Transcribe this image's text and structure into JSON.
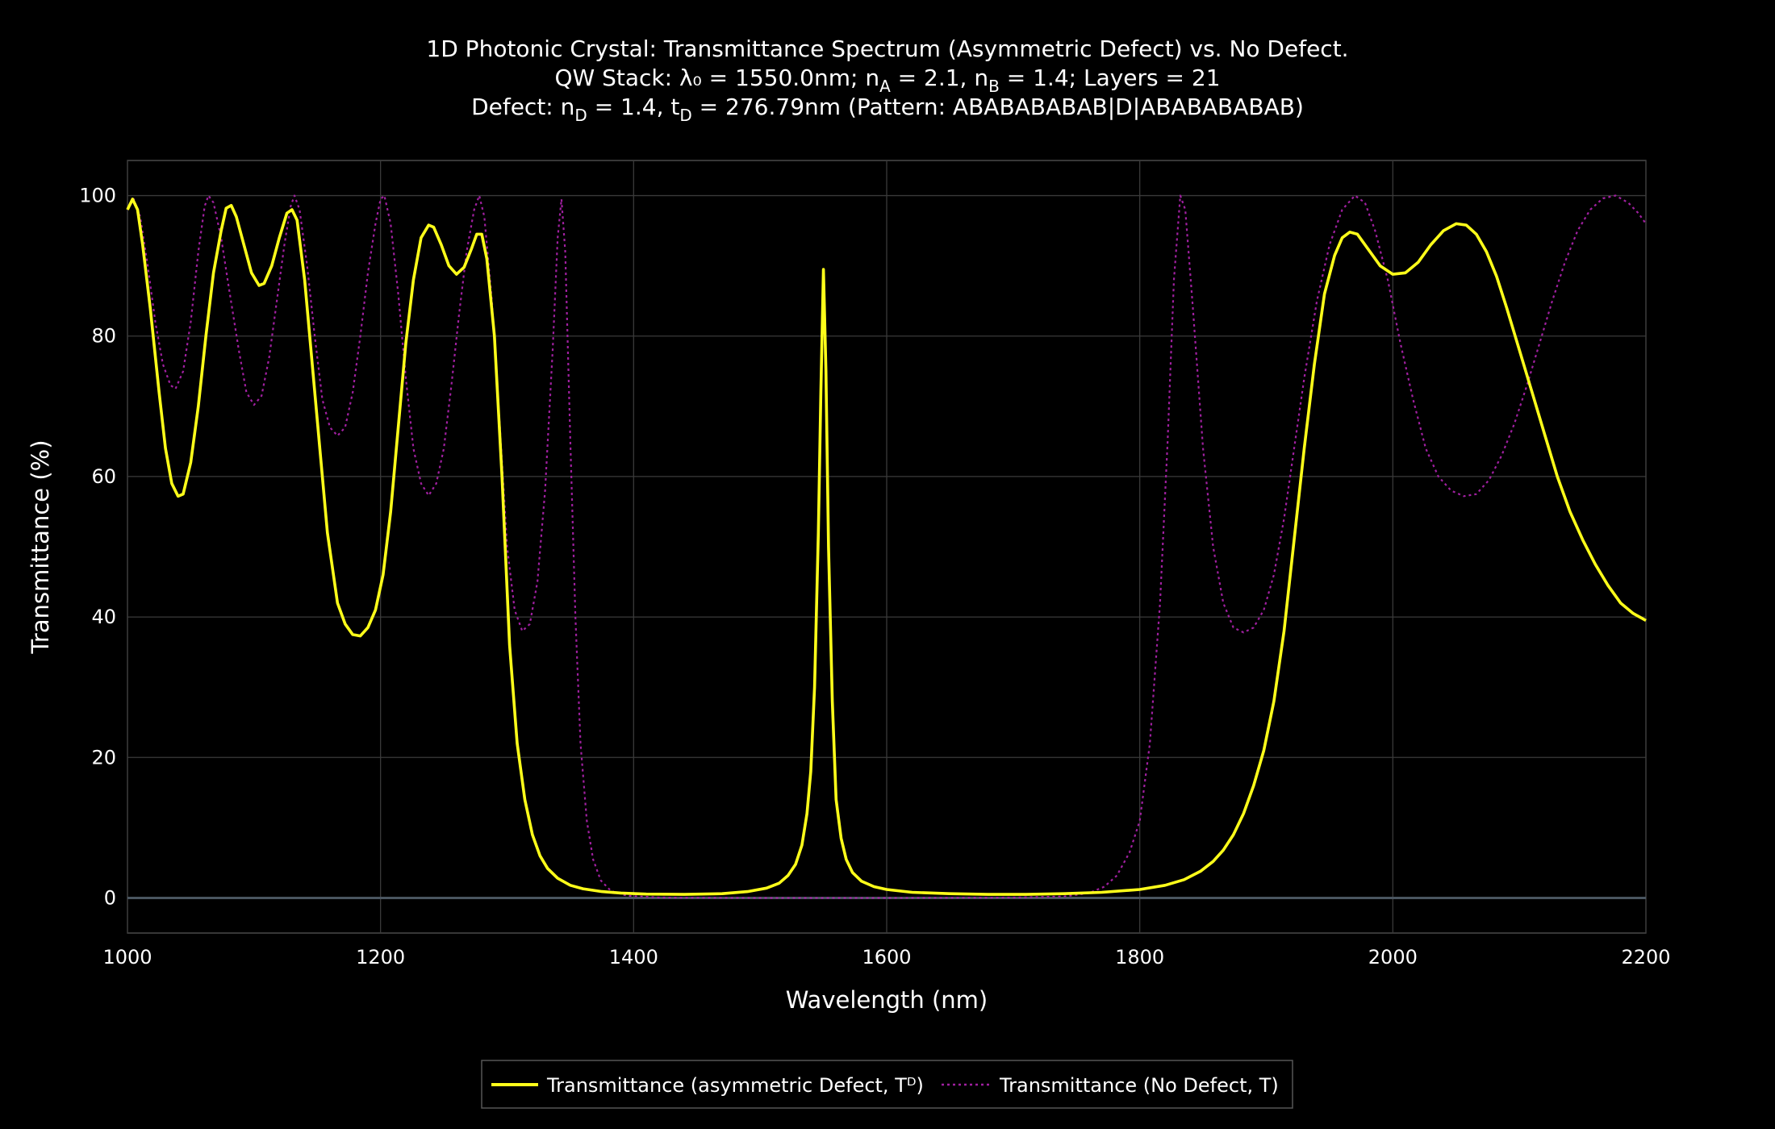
{
  "title": {
    "line1": "1D Photonic Crystal: Transmittance Spectrum (Asymmetric Defect) vs. No Defect.",
    "line2_a": "QW Stack: λ₀ = 1550.0nm; n",
    "line2_sub_a": "A",
    "line2_b": " = 2.1, n",
    "line2_sub_b": "B",
    "line2_c": " = 1.4; Layers = 21",
    "line3_a": "Defect: n",
    "line3_sub_a": "D",
    "line3_b": " = 1.4, t",
    "line3_sub_b": "D",
    "line3_c": " = 276.79nm (Pattern: ABABABABAB|D|ABABABABAB)"
  },
  "colors": {
    "background": "#000000",
    "defect_series": "#ffff1a",
    "no_defect_series": "#a020a0",
    "grid": "#3a3a3a",
    "zeroline": "#4a5560"
  },
  "chart_data": {
    "type": "line",
    "xlabel": "Wavelength (nm)",
    "ylabel": "Transmittance (%)",
    "xlim": [
      1000,
      2200
    ],
    "ylim": [
      -5,
      105
    ],
    "x_ticks": [
      1000,
      1200,
      1400,
      1600,
      1800,
      2000,
      2200
    ],
    "y_ticks": [
      0,
      20,
      40,
      60,
      80,
      100
    ],
    "grid": true,
    "legend_position": "bottom-center",
    "series": [
      {
        "name": "Transmittance (asymmetric Defect, Tᴰ)",
        "style": "solid",
        "color": "#ffff1a",
        "points": [
          [
            1000,
            98
          ],
          [
            1004,
            99.5
          ],
          [
            1008,
            98
          ],
          [
            1012,
            93
          ],
          [
            1018,
            84
          ],
          [
            1025,
            72
          ],
          [
            1030,
            64
          ],
          [
            1035,
            59
          ],
          [
            1040,
            57.2
          ],
          [
            1044,
            57.5
          ],
          [
            1050,
            62
          ],
          [
            1056,
            70
          ],
          [
            1062,
            80
          ],
          [
            1068,
            89
          ],
          [
            1074,
            95
          ],
          [
            1078,
            98.2
          ],
          [
            1082,
            98.6
          ],
          [
            1086,
            97
          ],
          [
            1092,
            93
          ],
          [
            1098,
            89
          ],
          [
            1104,
            87.2
          ],
          [
            1108,
            87.5
          ],
          [
            1114,
            90
          ],
          [
            1120,
            94
          ],
          [
            1126,
            97.5
          ],
          [
            1130,
            98
          ],
          [
            1134,
            96.5
          ],
          [
            1140,
            88
          ],
          [
            1146,
            76
          ],
          [
            1152,
            64
          ],
          [
            1158,
            52
          ],
          [
            1166,
            42
          ],
          [
            1172,
            39
          ],
          [
            1178,
            37.5
          ],
          [
            1184,
            37.3
          ],
          [
            1190,
            38.5
          ],
          [
            1196,
            41
          ],
          [
            1202,
            46
          ],
          [
            1208,
            55
          ],
          [
            1214,
            67
          ],
          [
            1220,
            79
          ],
          [
            1226,
            88
          ],
          [
            1232,
            94
          ],
          [
            1238,
            95.8
          ],
          [
            1242,
            95.5
          ],
          [
            1248,
            93
          ],
          [
            1254,
            90
          ],
          [
            1260,
            88.8
          ],
          [
            1266,
            89.8
          ],
          [
            1272,
            92.5
          ],
          [
            1276,
            94.5
          ],
          [
            1280,
            94.5
          ],
          [
            1284,
            91
          ],
          [
            1290,
            80
          ],
          [
            1296,
            60
          ],
          [
            1302,
            36
          ],
          [
            1308,
            22
          ],
          [
            1314,
            14
          ],
          [
            1320,
            9
          ],
          [
            1326,
            6
          ],
          [
            1332,
            4.2
          ],
          [
            1340,
            2.8
          ],
          [
            1350,
            1.8
          ],
          [
            1360,
            1.3
          ],
          [
            1375,
            0.9
          ],
          [
            1390,
            0.7
          ],
          [
            1410,
            0.55
          ],
          [
            1440,
            0.5
          ],
          [
            1470,
            0.6
          ],
          [
            1490,
            0.9
          ],
          [
            1505,
            1.4
          ],
          [
            1515,
            2.1
          ],
          [
            1522,
            3.2
          ],
          [
            1528,
            4.8
          ],
          [
            1533,
            7.5
          ],
          [
            1537,
            12
          ],
          [
            1540,
            18
          ],
          [
            1543,
            30
          ],
          [
            1546,
            52
          ],
          [
            1548,
            72
          ],
          [
            1550,
            89.5
          ],
          [
            1552,
            75
          ],
          [
            1554,
            50
          ],
          [
            1557,
            28
          ],
          [
            1560,
            14
          ],
          [
            1564,
            8.5
          ],
          [
            1568,
            5.5
          ],
          [
            1573,
            3.6
          ],
          [
            1580,
            2.4
          ],
          [
            1590,
            1.6
          ],
          [
            1600,
            1.2
          ],
          [
            1620,
            0.8
          ],
          [
            1650,
            0.6
          ],
          [
            1680,
            0.5
          ],
          [
            1710,
            0.5
          ],
          [
            1740,
            0.6
          ],
          [
            1770,
            0.8
          ],
          [
            1800,
            1.2
          ],
          [
            1820,
            1.8
          ],
          [
            1835,
            2.6
          ],
          [
            1848,
            3.8
          ],
          [
            1858,
            5.2
          ],
          [
            1866,
            6.8
          ],
          [
            1874,
            9
          ],
          [
            1882,
            12
          ],
          [
            1890,
            16
          ],
          [
            1898,
            21
          ],
          [
            1906,
            28
          ],
          [
            1914,
            38
          ],
          [
            1922,
            51
          ],
          [
            1930,
            64
          ],
          [
            1938,
            76
          ],
          [
            1946,
            86
          ],
          [
            1954,
            91.5
          ],
          [
            1960,
            94
          ],
          [
            1966,
            94.8
          ],
          [
            1972,
            94.5
          ],
          [
            1980,
            92.5
          ],
          [
            1990,
            90
          ],
          [
            2000,
            88.8
          ],
          [
            2010,
            89
          ],
          [
            2020,
            90.5
          ],
          [
            2030,
            93
          ],
          [
            2040,
            95
          ],
          [
            2050,
            96
          ],
          [
            2058,
            95.8
          ],
          [
            2066,
            94.5
          ],
          [
            2074,
            92
          ],
          [
            2082,
            88.5
          ],
          [
            2090,
            84
          ],
          [
            2100,
            78
          ],
          [
            2110,
            72
          ],
          [
            2120,
            66
          ],
          [
            2130,
            60
          ],
          [
            2140,
            55
          ],
          [
            2150,
            51
          ],
          [
            2160,
            47.5
          ],
          [
            2170,
            44.5
          ],
          [
            2180,
            42
          ],
          [
            2190,
            40.5
          ],
          [
            2200,
            39.5
          ]
        ]
      },
      {
        "name": "Transmittance (No Defect, T)",
        "style": "dotted",
        "color": "#a020a0",
        "points": [
          [
            1000,
            98
          ],
          [
            1005,
            99.5
          ],
          [
            1010,
            97
          ],
          [
            1016,
            90
          ],
          [
            1022,
            82
          ],
          [
            1028,
            76
          ],
          [
            1034,
            73
          ],
          [
            1038,
            72.5
          ],
          [
            1044,
            75
          ],
          [
            1050,
            82
          ],
          [
            1056,
            92
          ],
          [
            1061,
            98.5
          ],
          [
            1064,
            100
          ],
          [
            1068,
            99
          ],
          [
            1074,
            94
          ],
          [
            1080,
            87
          ],
          [
            1088,
            78
          ],
          [
            1094,
            72
          ],
          [
            1100,
            70.2
          ],
          [
            1106,
            71.5
          ],
          [
            1112,
            77
          ],
          [
            1118,
            85
          ],
          [
            1124,
            93
          ],
          [
            1129,
            98.5
          ],
          [
            1132,
            100
          ],
          [
            1136,
            98
          ],
          [
            1142,
            90
          ],
          [
            1148,
            80
          ],
          [
            1154,
            71
          ],
          [
            1160,
            67
          ],
          [
            1166,
            65.8
          ],
          [
            1172,
            67
          ],
          [
            1178,
            72
          ],
          [
            1184,
            80
          ],
          [
            1190,
            89
          ],
          [
            1196,
            96
          ],
          [
            1200,
            99.5
          ],
          [
            1203,
            100
          ],
          [
            1208,
            96
          ],
          [
            1214,
            86
          ],
          [
            1220,
            74
          ],
          [
            1226,
            64
          ],
          [
            1232,
            59
          ],
          [
            1238,
            57.3
          ],
          [
            1244,
            59
          ],
          [
            1250,
            64
          ],
          [
            1256,
            73
          ],
          [
            1262,
            83
          ],
          [
            1268,
            92
          ],
          [
            1274,
            98
          ],
          [
            1278,
            100
          ],
          [
            1282,
            97
          ],
          [
            1288,
            85
          ],
          [
            1294,
            68
          ],
          [
            1300,
            50
          ],
          [
            1306,
            41
          ],
          [
            1312,
            38
          ],
          [
            1318,
            39
          ],
          [
            1324,
            45
          ],
          [
            1330,
            58
          ],
          [
            1336,
            78
          ],
          [
            1340,
            94
          ],
          [
            1343,
            99.5
          ],
          [
            1346,
            92
          ],
          [
            1350,
            65
          ],
          [
            1354,
            40
          ],
          [
            1358,
            22
          ],
          [
            1363,
            11
          ],
          [
            1368,
            5.5
          ],
          [
            1374,
            2.5
          ],
          [
            1382,
            1
          ],
          [
            1395,
            0.3
          ],
          [
            1420,
            0.05
          ],
          [
            1500,
            0
          ],
          [
            1600,
            0
          ],
          [
            1700,
            0.05
          ],
          [
            1740,
            0.2
          ],
          [
            1760,
            0.7
          ],
          [
            1772,
            1.6
          ],
          [
            1782,
            3.2
          ],
          [
            1792,
            6.5
          ],
          [
            1800,
            11
          ],
          [
            1808,
            22
          ],
          [
            1816,
            42
          ],
          [
            1822,
            65
          ],
          [
            1827,
            88
          ],
          [
            1832,
            100
          ],
          [
            1836,
            98
          ],
          [
            1842,
            84
          ],
          [
            1850,
            64
          ],
          [
            1858,
            50
          ],
          [
            1866,
            42
          ],
          [
            1874,
            38.5
          ],
          [
            1882,
            37.8
          ],
          [
            1890,
            38.5
          ],
          [
            1898,
            41
          ],
          [
            1906,
            46
          ],
          [
            1914,
            54
          ],
          [
            1922,
            64
          ],
          [
            1930,
            74
          ],
          [
            1940,
            85
          ],
          [
            1950,
            93
          ],
          [
            1960,
            98
          ],
          [
            1970,
            100
          ],
          [
            1978,
            99
          ],
          [
            1986,
            95
          ],
          [
            1996,
            88
          ],
          [
            2006,
            79
          ],
          [
            2016,
            71
          ],
          [
            2026,
            64
          ],
          [
            2036,
            60
          ],
          [
            2046,
            58
          ],
          [
            2056,
            57.2
          ],
          [
            2066,
            57.5
          ],
          [
            2076,
            59.5
          ],
          [
            2086,
            63
          ],
          [
            2096,
            67.5
          ],
          [
            2106,
            73
          ],
          [
            2116,
            79
          ],
          [
            2126,
            85
          ],
          [
            2136,
            90.5
          ],
          [
            2146,
            95
          ],
          [
            2156,
            98
          ],
          [
            2166,
            99.6
          ],
          [
            2176,
            100
          ],
          [
            2186,
            99
          ],
          [
            2194,
            97.5
          ],
          [
            2200,
            96
          ]
        ]
      }
    ]
  }
}
